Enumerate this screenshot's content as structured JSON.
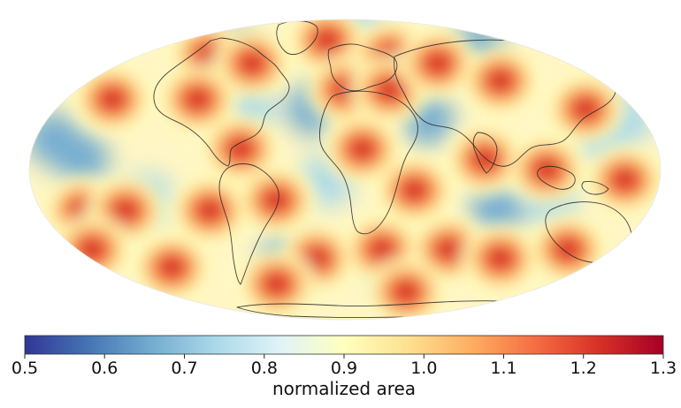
{
  "chart_data": {
    "type": "heatmap",
    "projection": "mollweide",
    "title": "",
    "colormap": "RdYlBu_r",
    "color_stops": [
      "#313695",
      "#4575b4",
      "#74add1",
      "#abd9e9",
      "#e0f3f8",
      "#ffffbf",
      "#fee090",
      "#fdae61",
      "#f46d43",
      "#d73027",
      "#a50026"
    ],
    "colorbar": {
      "label": "normalized area",
      "vmin": 0.5,
      "vmax": 1.3,
      "ticks": [
        0.5,
        0.6,
        0.7,
        0.8,
        0.9,
        1.0,
        1.1,
        1.2,
        1.3
      ],
      "tick_labels": [
        "0.5",
        "0.6",
        "0.7",
        "0.8",
        "0.9",
        "1.0",
        "1.1",
        "1.2",
        "1.3"
      ]
    },
    "high_area_cells_lonlat": [
      [
        -150,
        35
      ],
      [
        -120,
        60
      ],
      [
        -75,
        55
      ],
      [
        -20,
        70
      ],
      [
        0,
        40
      ],
      [
        40,
        60
      ],
      [
        30,
        40
      ],
      [
        75,
        55
      ],
      [
        110,
        45
      ],
      [
        150,
        30
      ],
      [
        -155,
        -20
      ],
      [
        -95,
        35
      ],
      [
        -60,
        10
      ],
      [
        10,
        10
      ],
      [
        40,
        -10
      ],
      [
        80,
        5
      ],
      [
        115,
        0
      ],
      [
        160,
        -5
      ],
      [
        -130,
        -20
      ],
      [
        -80,
        -20
      ],
      [
        -40,
        -15
      ],
      [
        -170,
        -40
      ],
      [
        -130,
        -50
      ],
      [
        -20,
        -45
      ],
      [
        25,
        -40
      ],
      [
        70,
        -40
      ],
      [
        110,
        -45
      ],
      [
        150,
        -40
      ],
      [
        -60,
        -60
      ],
      [
        60,
        -65
      ]
    ],
    "low_area_vertices_lonlat": [
      [
        -100,
        60
      ],
      [
        -60,
        30
      ],
      [
        -150,
        5
      ],
      [
        -115,
        -15
      ],
      [
        -20,
        30
      ],
      [
        -10,
        -5
      ],
      [
        50,
        25
      ],
      [
        35,
        85
      ],
      [
        130,
        65
      ],
      [
        150,
        15
      ],
      [
        90,
        -20
      ],
      [
        120,
        -15
      ],
      [
        -40,
        -45
      ],
      [
        40,
        -50
      ],
      [
        -170,
        15
      ],
      [
        170,
        25
      ]
    ]
  }
}
